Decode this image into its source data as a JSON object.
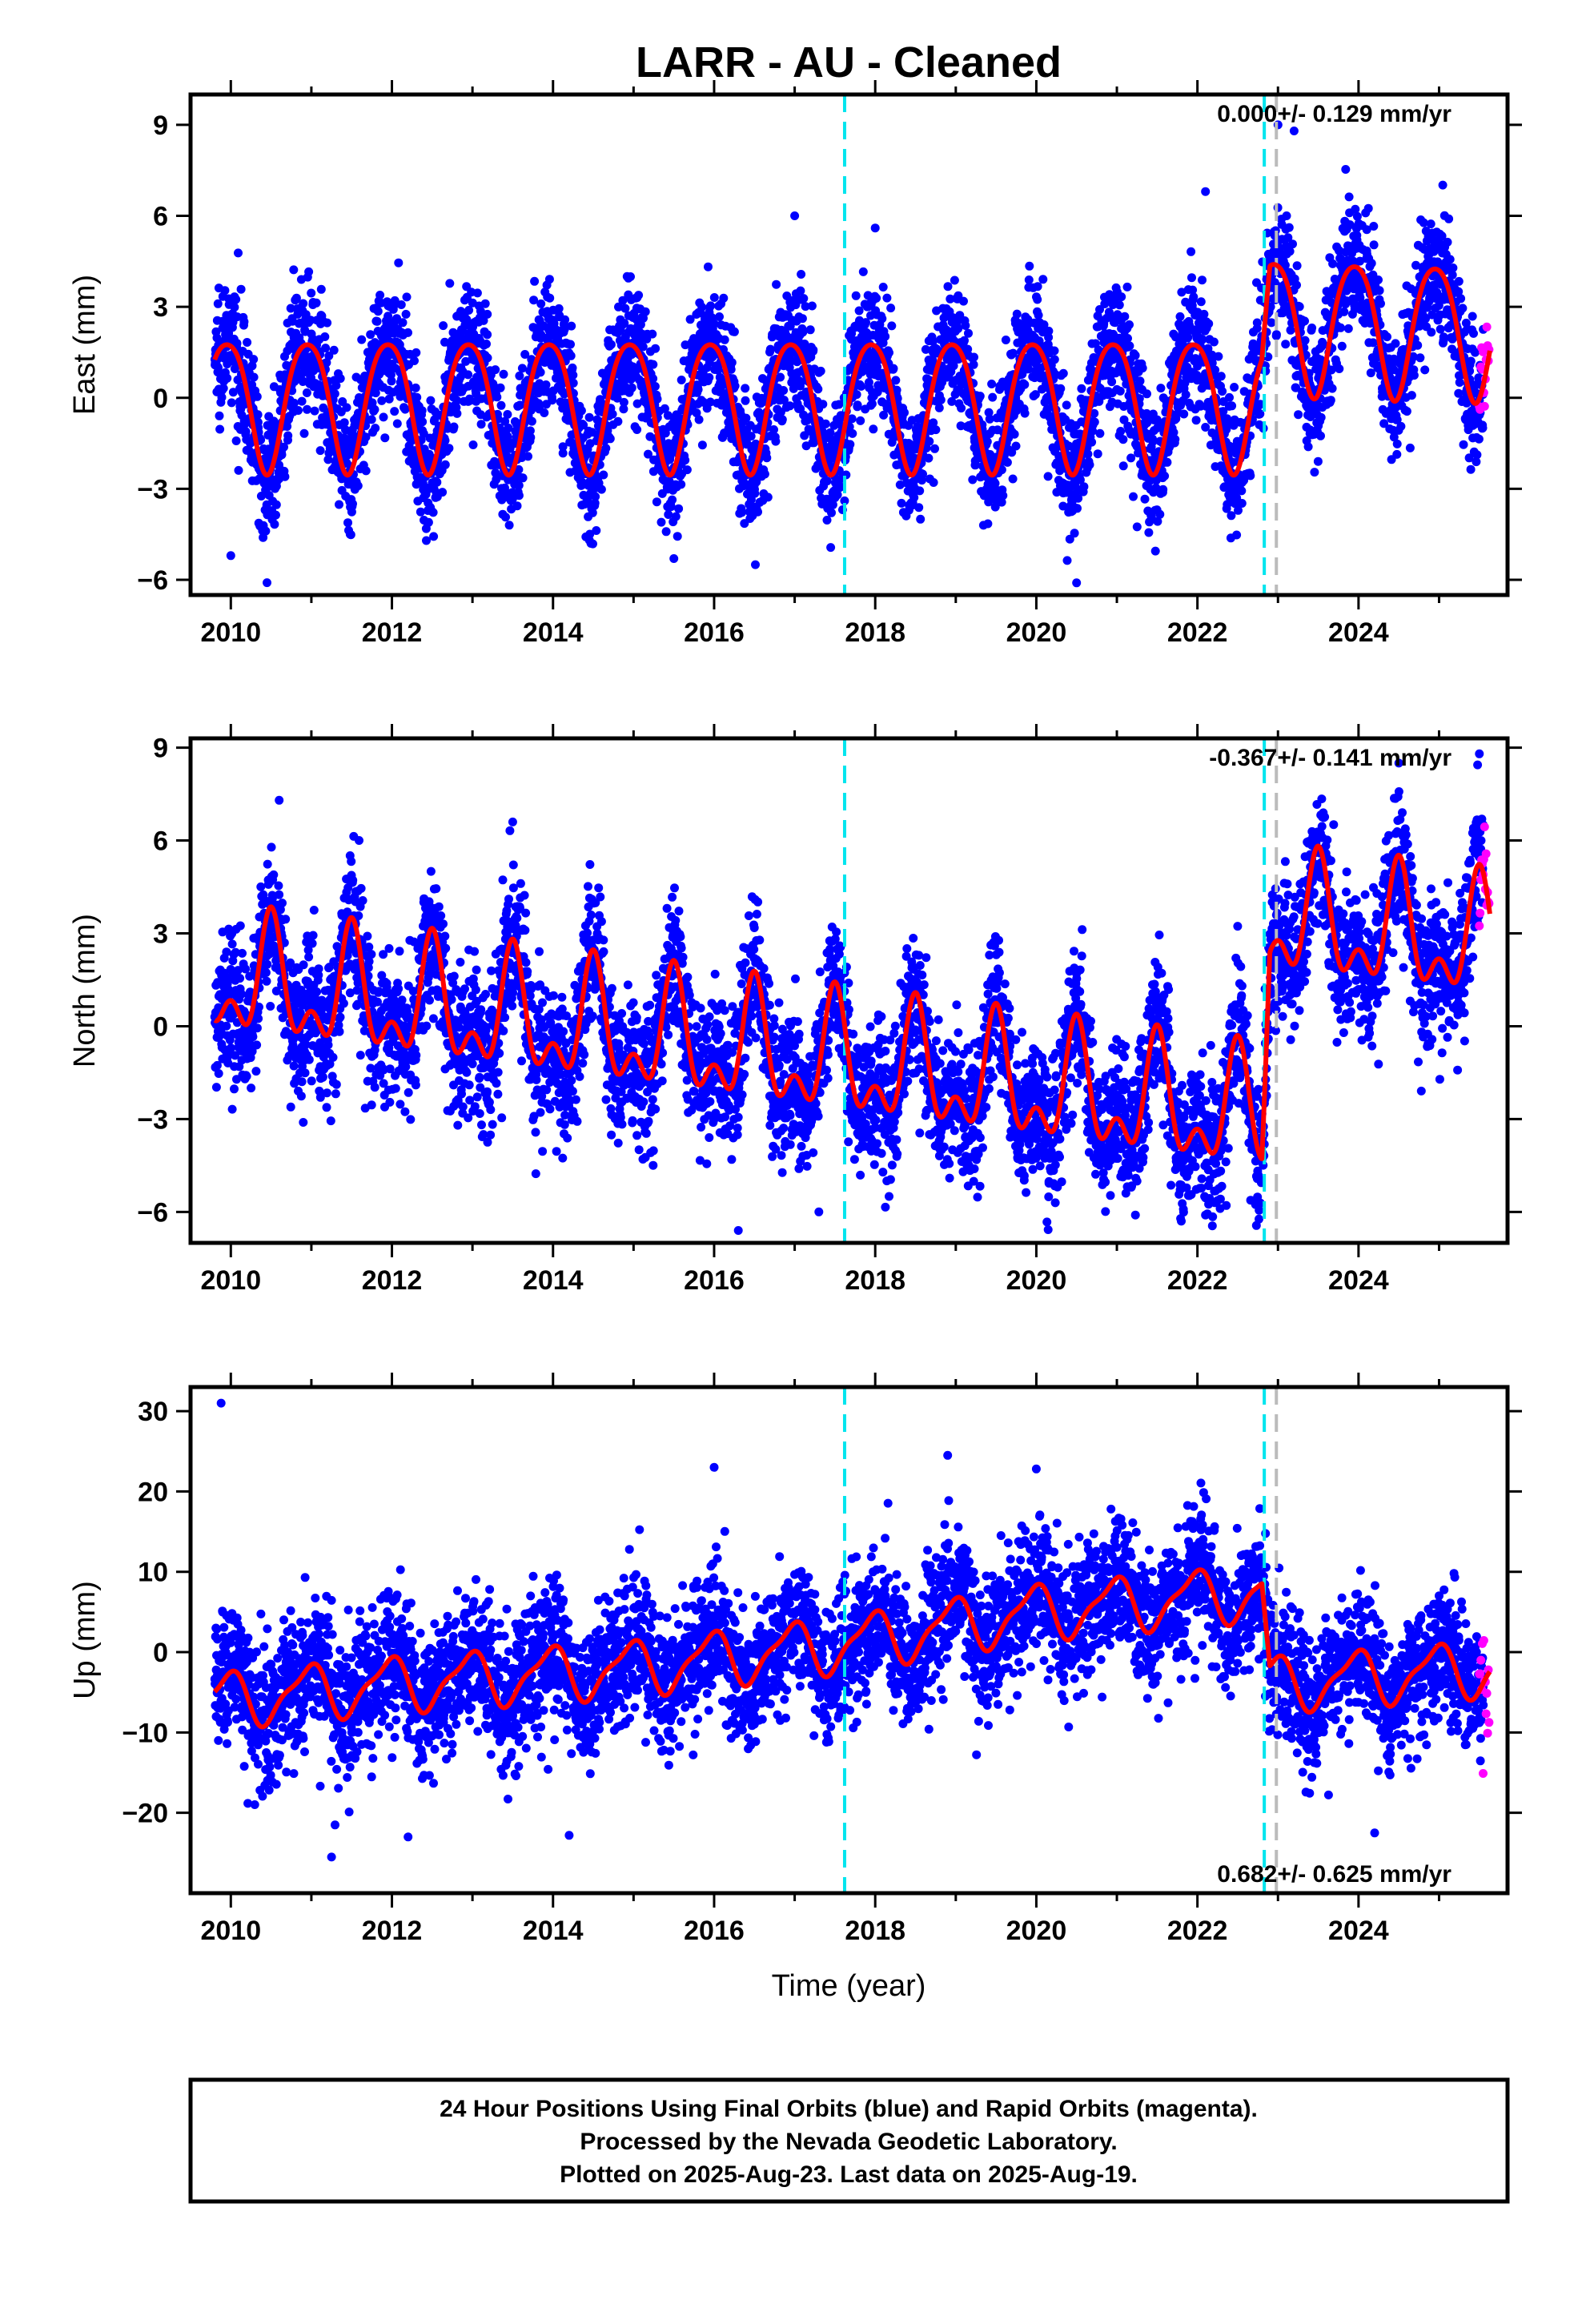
{
  "title": "LARR  - AU - Cleaned",
  "xlabel": "Time (year)",
  "footer": {
    "line1": "24 Hour Positions Using Final Orbits (blue) and Rapid Orbits (magenta).",
    "line2": "Processed by the Nevada Geodetic Laboratory.",
    "line3": "Plotted on 2025-Aug-23. Last data on 2025-Aug-19."
  },
  "colors": {
    "final_points": "#0000ff",
    "rapid_points": "#ff00ff",
    "model_line": "#ff0000",
    "equipment_change": "#00e5ee",
    "other_step": "#bbbbbb"
  },
  "chart_data": [
    {
      "type": "scatter",
      "name": "east",
      "ylabel": "East (mm)",
      "rate_label": "0.000+/- 0.129 mm/yr",
      "rate_position": "top-right",
      "xlim": [
        2009.5,
        2025.85
      ],
      "ylim": [
        -6.5,
        10
      ],
      "xticks": [
        2010,
        2012,
        2014,
        2016,
        2018,
        2020,
        2022,
        2024
      ],
      "yticks": [
        -6,
        -3,
        0,
        3,
        6,
        9
      ],
      "ytick_labels": [
        "−6",
        "−3",
        "0",
        "3",
        "6",
        "9"
      ],
      "equipment_changes": [
        2017.62,
        2022.83
      ],
      "other_steps": [
        2022.98
      ],
      "data_span": [
        2009.8,
        2025.55
      ],
      "rapid_span": [
        2025.5,
        2025.63
      ],
      "model": {
        "mean": [
          [
            2009.8,
            -0.1
          ],
          [
            2022.8,
            -0.1
          ],
          [
            2022.9,
            2.5
          ],
          [
            2025.6,
            2.3
          ]
        ],
        "annual_amp": [
          [
            2009.8,
            2.15
          ],
          [
            2022.8,
            2.15
          ],
          [
            2022.9,
            2.2
          ],
          [
            2025.6,
            2.2
          ]
        ],
        "annual_phase_year": 0.95,
        "semiannual_amp": [
          [
            2009.8,
            0.3
          ],
          [
            2025.6,
            0.3
          ]
        ],
        "semiannual_phase_year": 0.2
      },
      "noise_sd": 1.05,
      "points_per_year": 330,
      "outliers": [
        [
          2010.0,
          -5.2
        ],
        [
          2015.5,
          -5.3
        ],
        [
          2017.0,
          6.0
        ],
        [
          2018.0,
          5.6
        ],
        [
          2020.5,
          -6.1
        ],
        [
          2022.1,
          6.8
        ],
        [
          2023.0,
          9.0
        ],
        [
          2023.2,
          8.8
        ]
      ]
    },
    {
      "type": "scatter",
      "name": "north",
      "ylabel": "North (mm)",
      "rate_label": "-0.367+/- 0.141 mm/yr",
      "rate_position": "top-right",
      "xlim": [
        2009.5,
        2025.85
      ],
      "ylim": [
        -7,
        9.3
      ],
      "xticks": [
        2010,
        2012,
        2014,
        2016,
        2018,
        2020,
        2022,
        2024
      ],
      "yticks": [
        -6,
        -3,
        0,
        3,
        6,
        9
      ],
      "ytick_labels": [
        "−6",
        "−3",
        "0",
        "3",
        "6",
        "9"
      ],
      "equipment_changes": [
        2017.62,
        2022.83
      ],
      "other_steps": [
        2022.98
      ],
      "data_span": [
        2009.8,
        2025.55
      ],
      "rapid_span": [
        2025.5,
        2025.63
      ],
      "model": {
        "mean": [
          [
            2009.8,
            1.5
          ],
          [
            2022.8,
            -3.0
          ],
          [
            2022.9,
            3.4
          ],
          [
            2025.6,
            2.6
          ]
        ],
        "annual_amp": [
          [
            2009.8,
            1.6
          ],
          [
            2025.6,
            1.6
          ]
        ],
        "annual_phase_year": 0.5,
        "semiannual_amp": [
          [
            2009.8,
            1.0
          ],
          [
            2025.6,
            1.0
          ]
        ],
        "semiannual_phase_year": 0.0
      },
      "noise_sd": 1.15,
      "points_per_year": 330,
      "outliers": [
        [
          2010.6,
          7.3
        ],
        [
          2013.5,
          6.6
        ],
        [
          2016.3,
          -6.6
        ],
        [
          2017.3,
          -6.0
        ],
        [
          2021.8,
          -6.3
        ],
        [
          2022.1,
          -6.1
        ],
        [
          2024.5,
          8.5
        ],
        [
          2025.5,
          8.8
        ]
      ]
    },
    {
      "type": "scatter",
      "name": "up",
      "ylabel": "Up (mm)",
      "rate_label": "0.682+/- 0.625 mm/yr",
      "rate_position": "bottom-right",
      "xlim": [
        2009.5,
        2025.85
      ],
      "ylim": [
        -30,
        33
      ],
      "xticks": [
        2010,
        2012,
        2014,
        2016,
        2018,
        2020,
        2022,
        2024
      ],
      "yticks": [
        -20,
        -10,
        0,
        10,
        20,
        30
      ],
      "ytick_labels": [
        "−20",
        "−10",
        "0",
        "10",
        "20",
        "30"
      ],
      "equipment_changes": [
        2017.62,
        2022.83
      ],
      "other_steps": [
        2022.98
      ],
      "data_span": [
        2009.8,
        2025.55
      ],
      "rapid_span": [
        2025.5,
        2025.63
      ],
      "model": {
        "mean": [
          [
            2009.8,
            -6.0
          ],
          [
            2012.0,
            -4.0
          ],
          [
            2015.0,
            -2.0
          ],
          [
            2017.6,
            1.0
          ],
          [
            2020.0,
            5.0
          ],
          [
            2022.8,
            7.5
          ],
          [
            2022.9,
            -4.0
          ],
          [
            2025.6,
            -2.0
          ]
        ],
        "annual_amp": [
          [
            2009.8,
            3.2
          ],
          [
            2025.6,
            3.2
          ]
        ],
        "annual_phase_year": 0.95,
        "semiannual_amp": [
          [
            2009.8,
            1.0
          ],
          [
            2025.6,
            1.0
          ]
        ],
        "semiannual_phase_year": 0.1
      },
      "noise_sd": 4.2,
      "points_per_year": 330,
      "outliers": [
        [
          2009.88,
          31.0
        ],
        [
          2011.25,
          -25.5
        ],
        [
          2016.0,
          23.0
        ],
        [
          2018.9,
          24.5
        ],
        [
          2020.0,
          22.8
        ],
        [
          2024.2,
          -22.5
        ],
        [
          2012.2,
          -23.0
        ],
        [
          2014.2,
          -22.8
        ]
      ]
    }
  ]
}
